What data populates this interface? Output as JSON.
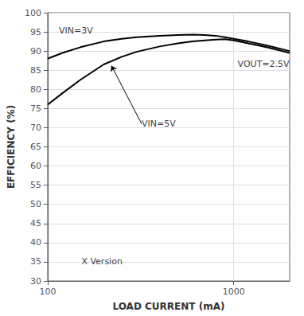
{
  "chart_data": {
    "type": "line",
    "xlabel": "LOAD CURRENT (mA)",
    "ylabel": "EFFICIENCY (%)",
    "log": "x",
    "xlim": [
      100,
      2000
    ],
    "xticks": [
      100,
      1000
    ],
    "ylim": [
      30,
      100
    ],
    "yticks": [
      30,
      35,
      40,
      45,
      50,
      55,
      60,
      65,
      70,
      75,
      80,
      85,
      90,
      95,
      100
    ],
    "grid": true,
    "x": [
      100,
      120,
      150,
      200,
      250,
      300,
      400,
      500,
      600,
      700,
      800,
      900,
      1000,
      1200,
      1500,
      2000
    ],
    "series": [
      {
        "color": "#000000",
        "values": [
          88.0,
          89.5,
          91.0,
          92.5,
          93.2,
          93.6,
          94.0,
          94.2,
          94.3,
          94.2,
          94.0,
          93.6,
          93.2,
          92.5,
          91.5,
          90.0
        ]
      },
      {
        "color": "#000000",
        "values": [
          76.0,
          79.0,
          82.5,
          86.5,
          88.5,
          89.8,
          91.2,
          92.0,
          92.5,
          92.8,
          93.0,
          93.1,
          92.8,
          92.0,
          91.0,
          89.5
        ]
      }
    ],
    "annotations": [
      {
        "text": "VIN=3V",
        "x": 115,
        "y": 95.3
      },
      {
        "text": "VIN=5V",
        "x": 320,
        "y": 71.0,
        "arrow": [
          220,
          86.2
        ]
      },
      {
        "text": "VOUT=2.5V",
        "x": 1050,
        "y": 86.5
      },
      {
        "text": "X Version",
        "x": 152,
        "y": 35
      }
    ]
  }
}
